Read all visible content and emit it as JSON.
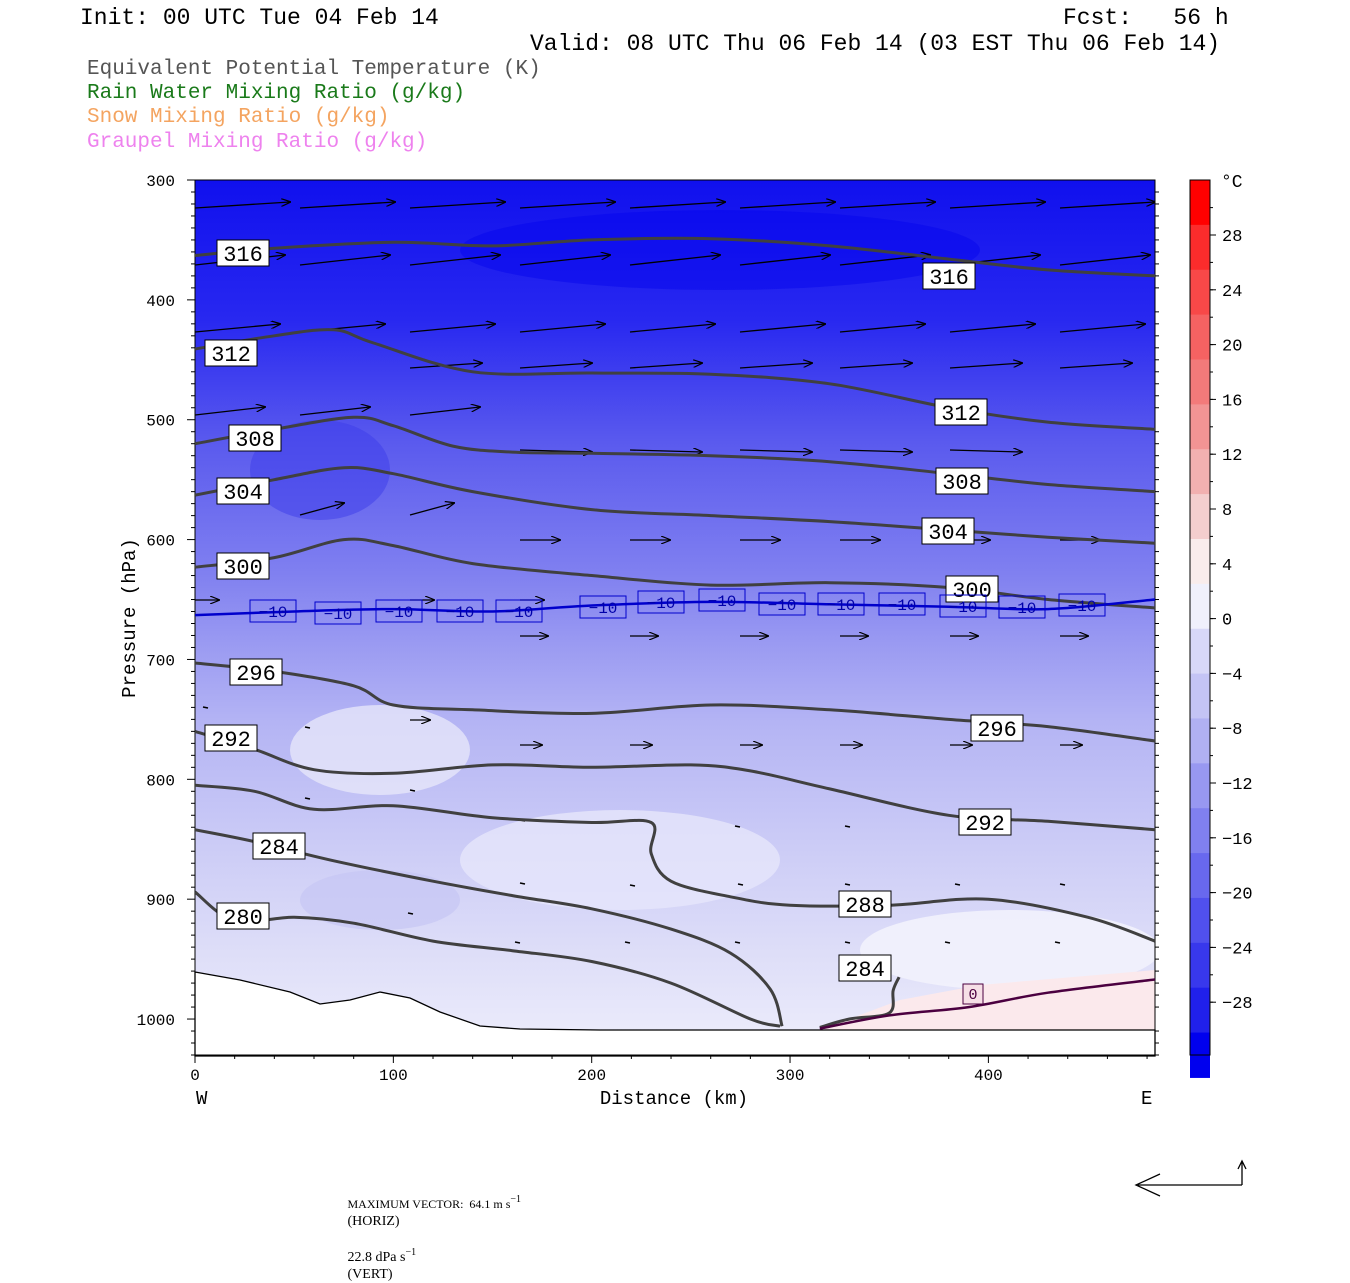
{
  "header": {
    "init": "Init: 00 UTC Tue 04 Feb 14",
    "fcst": "Fcst:   56 h",
    "valid": "Valid: 08 UTC Thu 06 Feb 14 (03 EST Thu 06 Feb 14)"
  },
  "legend": [
    {
      "label": "Equivalent Potential Temperature (K)",
      "color": "#555555"
    },
    {
      "label": "Rain Water Mixing Ratio (g/kg)",
      "color": "#1a7a1a"
    },
    {
      "label": "Snow Mixing Ratio (g/kg)",
      "color": "#f4a460"
    },
    {
      "label": "Graupel Mixing Ratio (g/kg)",
      "color": "#ee82ee"
    }
  ],
  "chart_data": {
    "type": "cross-section",
    "xlabel": "Distance (km)",
    "ylabel": "Pressure (hPa)",
    "x_ticks": [
      "0",
      "100",
      "200",
      "300",
      "400"
    ],
    "x_range": [
      0,
      484
    ],
    "y_ticks": [
      "300",
      "400",
      "500",
      "600",
      "700",
      "800",
      "900",
      "1000"
    ],
    "y_range": [
      300,
      1030
    ],
    "y_direction": "pressure increases downward",
    "west_label": "W",
    "east_label": "E",
    "colorbar": {
      "unit": "°C",
      "tick_labels": [
        "28",
        "24",
        "20",
        "16",
        "12",
        "8",
        "4",
        "0",
        "−4",
        "−8",
        "−12",
        "−16",
        "−20",
        "−24",
        "−28"
      ],
      "range": [
        -32,
        32
      ]
    },
    "theta_e_contours": [
      {
        "value": 316,
        "points": [
          [
            0,
            363
          ],
          [
            40,
            357
          ],
          [
            100,
            352
          ],
          [
            150,
            355
          ],
          [
            200,
            350
          ],
          [
            260,
            349
          ],
          [
            320,
            355
          ],
          [
            380,
            366
          ],
          [
            430,
            375
          ],
          [
            484,
            380
          ]
        ],
        "labels": [
          "316",
          "316"
        ]
      },
      {
        "value": 312,
        "points": [
          [
            0,
            441
          ],
          [
            40,
            430
          ],
          [
            70,
            425
          ],
          [
            90,
            436
          ],
          [
            140,
            460
          ],
          [
            200,
            461
          ],
          [
            260,
            462
          ],
          [
            320,
            470
          ],
          [
            380,
            490
          ],
          [
            430,
            502
          ],
          [
            484,
            508
          ]
        ],
        "labels": [
          "312",
          "312"
        ]
      },
      {
        "value": 308,
        "points": [
          [
            0,
            520
          ],
          [
            40,
            508
          ],
          [
            80,
            498
          ],
          [
            100,
            505
          ],
          [
            130,
            522
          ],
          [
            160,
            527
          ],
          [
            200,
            528
          ],
          [
            260,
            530
          ],
          [
            320,
            535
          ],
          [
            380,
            545
          ],
          [
            430,
            554
          ],
          [
            484,
            560
          ]
        ],
        "labels": [
          "308",
          "308"
        ]
      },
      {
        "value": 304,
        "points": [
          [
            0,
            563
          ],
          [
            40,
            550
          ],
          [
            75,
            540
          ],
          [
            100,
            545
          ],
          [
            140,
            560
          ],
          [
            200,
            575
          ],
          [
            260,
            580
          ],
          [
            320,
            585
          ],
          [
            380,
            592
          ],
          [
            430,
            598
          ],
          [
            484,
            603
          ]
        ],
        "labels": [
          "304",
          "304"
        ]
      },
      {
        "value": 300,
        "points": [
          [
            0,
            623
          ],
          [
            40,
            615
          ],
          [
            75,
            600
          ],
          [
            100,
            605
          ],
          [
            140,
            620
          ],
          [
            200,
            630
          ],
          [
            260,
            638
          ],
          [
            320,
            636
          ],
          [
            380,
            640
          ],
          [
            430,
            650
          ],
          [
            484,
            657
          ]
        ],
        "labels": [
          "300",
          "300"
        ]
      },
      {
        "value": 296,
        "points": [
          [
            0,
            703
          ],
          [
            40,
            710
          ],
          [
            80,
            722
          ],
          [
            100,
            738
          ],
          [
            140,
            742
          ],
          [
            200,
            745
          ],
          [
            260,
            738
          ],
          [
            320,
            742
          ],
          [
            380,
            750
          ],
          [
            430,
            756
          ],
          [
            484,
            768
          ]
        ],
        "labels": [
          "296",
          "296"
        ]
      },
      {
        "value": 292,
        "points": [
          [
            0,
            760
          ],
          [
            30,
            775
          ],
          [
            60,
            792
          ],
          [
            100,
            795
          ],
          [
            150,
            788
          ],
          [
            200,
            790
          ],
          [
            250,
            788
          ],
          [
            280,
            793
          ],
          [
            320,
            808
          ],
          [
            380,
            830
          ],
          [
            430,
            835
          ],
          [
            484,
            842
          ]
        ],
        "labels": [
          "292",
          "292"
        ]
      },
      {
        "value": 288,
        "points": [
          [
            0,
            805
          ],
          [
            30,
            810
          ],
          [
            60,
            825
          ],
          [
            100,
            822
          ],
          [
            150,
            832
          ],
          [
            200,
            836
          ],
          [
            230,
            836
          ],
          [
            230,
            862
          ],
          [
            240,
            885
          ],
          [
            270,
            898
          ],
          [
            300,
            905
          ],
          [
            350,
            905
          ],
          [
            400,
            900
          ],
          [
            450,
            915
          ],
          [
            484,
            935
          ]
        ],
        "labels": [
          "288"
        ]
      },
      {
        "value": 284,
        "points": [
          [
            0,
            842
          ],
          [
            30,
            852
          ],
          [
            70,
            868
          ],
          [
            120,
            885
          ],
          [
            160,
            897
          ],
          [
            200,
            908
          ],
          [
            240,
            925
          ],
          [
            270,
            945
          ],
          [
            290,
            975
          ],
          [
            296,
            1006
          ]
        ],
        "labels": [
          "284",
          "284"
        ]
      },
      {
        "value": 280,
        "points": [
          [
            0,
            894
          ],
          [
            20,
            918
          ],
          [
            50,
            915
          ],
          [
            80,
            920
          ],
          [
            120,
            935
          ],
          [
            160,
            943
          ],
          [
            200,
            952
          ],
          [
            240,
            970
          ],
          [
            280,
            1000
          ],
          [
            295,
            1006
          ]
        ],
        "labels": [
          "280"
        ]
      },
      {
        "value": 284,
        "points": [
          [
            315,
            1007
          ],
          [
            330,
            1000
          ],
          [
            350,
            995
          ],
          [
            352,
            976
          ],
          [
            355,
            965
          ]
        ],
        "labels": []
      }
    ],
    "temperature_contours": [
      {
        "value": -10,
        "unit": "°C",
        "color": "#0000cc",
        "points": [
          [
            0,
            663
          ],
          [
            50,
            660
          ],
          [
            100,
            658
          ],
          [
            150,
            660
          ],
          [
            200,
            655
          ],
          [
            260,
            652
          ],
          [
            320,
            654
          ],
          [
            380,
            656
          ],
          [
            430,
            658
          ],
          [
            484,
            650
          ]
        ],
        "labels": [
          "−10",
          "−10",
          "−10",
          "−10",
          "−10",
          "−10",
          "−10",
          "−10",
          "−10",
          "−10",
          "−10",
          "−10",
          "−10",
          "−10"
        ]
      },
      {
        "value": 0,
        "unit": "°C",
        "color": "#4b0040",
        "points": [
          [
            315,
            1008
          ],
          [
            350,
            997
          ],
          [
            390,
            990
          ],
          [
            430,
            978
          ],
          [
            484,
            967
          ]
        ],
        "labels": [
          "0"
        ]
      }
    ],
    "max_vector": {
      "text": "MAXIMUM VECTOR:  64.1 m s",
      "horiz_unit": "(HORIZ)",
      "vert_text": "22.8 dPa s",
      "vert_unit": "(VERT)",
      "exp": "−1"
    }
  }
}
